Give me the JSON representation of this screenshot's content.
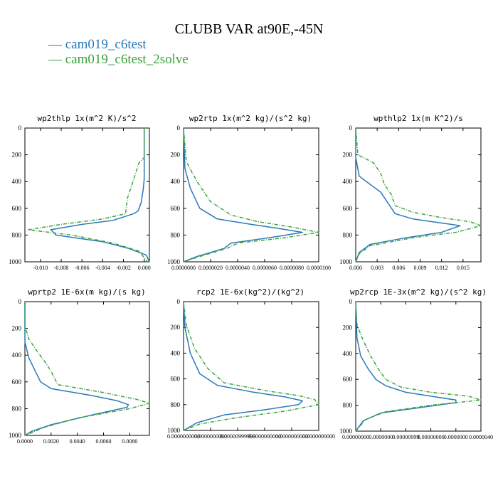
{
  "title": "CLUBB VAR at90E,-45N",
  "legend": [
    {
      "label": "— cam019_c6test",
      "color": "#2a7ab8"
    },
    {
      "label": "— cam019_c6test_2solve",
      "color": "#3aa33a"
    }
  ],
  "chart_data": [
    {
      "type": "line",
      "title": "wp2thlp   1x(m^2 K)/s^2",
      "xlim": [
        -0.0115,
        0.0005
      ],
      "ylim": [
        0,
        1000
      ],
      "y_inverted": true,
      "yticks": [
        0,
        200,
        400,
        600,
        800,
        1000
      ],
      "xticks": [
        -0.01,
        -0.008,
        -0.006,
        -0.004,
        -0.002,
        0.0
      ],
      "xtick_labels": [
        "-0.010",
        "-0.008",
        "-0.006",
        "-0.004",
        "-0.002",
        "0.000"
      ],
      "series": [
        {
          "name": "cam019_c6test",
          "color": "#2a7ab8",
          "dashed": false,
          "x": [
            0,
            0,
            -0.0001,
            -0.0003,
            -0.0006,
            -0.001,
            -0.003,
            -0.006,
            -0.009,
            -0.0085,
            -0.004,
            -0.0015,
            0.0002,
            0.0005
          ],
          "y": [
            0,
            380,
            460,
            560,
            620,
            640,
            690,
            720,
            760,
            800,
            850,
            900,
            950,
            1000
          ]
        },
        {
          "name": "cam019_c6test_2solve",
          "color": "#3aa33a",
          "dashed": true,
          "x": [
            0,
            0,
            -0.0005,
            -0.0013,
            -0.0016,
            -0.0017,
            -0.0018,
            -0.004,
            -0.008,
            -0.0112,
            -0.007,
            -0.003,
            -0.0005,
            0.0003
          ],
          "y": [
            0,
            220,
            260,
            450,
            520,
            580,
            640,
            680,
            720,
            760,
            800,
            860,
            920,
            1000
          ]
        }
      ]
    },
    {
      "type": "line",
      "title": "wp2rtp   1x(m^2 kg)/(s^2 kg)",
      "xlim": [
        0,
        1e-05
      ],
      "ylim": [
        0,
        1000
      ],
      "y_inverted": true,
      "yticks": [
        0,
        200,
        400,
        600,
        800,
        1000
      ],
      "xticks": [
        0,
        2e-06,
        4e-06,
        6e-06,
        8e-06,
        1e-05
      ],
      "xtick_labels": [
        "0.0000000",
        "0.0000020",
        "0.0000040",
        "0.0000060",
        "0.0000080",
        "0.0000100"
      ],
      "series": [
        {
          "name": "cam019_c6test",
          "color": "#2a7ab8",
          "dashed": false,
          "x": [
            0,
            1e-07,
            5e-07,
            1.2e-06,
            2.5e-06,
            5e-06,
            7e-06,
            8.8e-06,
            7e-06,
            3.5e-06,
            3e-06,
            1e-06,
            0
          ],
          "y": [
            0,
            300,
            450,
            600,
            680,
            720,
            750,
            780,
            810,
            860,
            900,
            960,
            1000
          ]
        },
        {
          "name": "cam019_c6test_2solve",
          "color": "#3aa33a",
          "dashed": true,
          "x": [
            0,
            2e-07,
            1e-06,
            2e-06,
            3.5e-06,
            5.5e-06,
            8e-06,
            1e-05,
            7.5e-06,
            4e-06,
            3.2e-06,
            1.2e-06,
            0
          ],
          "y": [
            0,
            250,
            400,
            550,
            650,
            700,
            740,
            780,
            820,
            860,
            900,
            960,
            1000
          ]
        }
      ]
    },
    {
      "type": "line",
      "title": "wpthlp2   1x(m K^2)/s",
      "xlim": [
        0,
        0.0175
      ],
      "ylim": [
        0,
        1000
      ],
      "y_inverted": true,
      "yticks": [
        0,
        200,
        400,
        600,
        800,
        1000
      ],
      "xticks": [
        0,
        0.003,
        0.006,
        0.009,
        0.012,
        0.015
      ],
      "xtick_labels": [
        "0.000",
        "0.003",
        "0.006",
        "0.009",
        "0.012",
        "0.015"
      ],
      "series": [
        {
          "name": "cam019_c6test",
          "color": "#2a7ab8",
          "dashed": false,
          "x": [
            0,
            0,
            0.0005,
            0.002,
            0.0035,
            0.0045,
            0.0055,
            0.008,
            0.012,
            0.0146,
            0.012,
            0.007,
            0.002,
            0.0005,
            0
          ],
          "y": [
            0,
            220,
            360,
            420,
            480,
            560,
            640,
            680,
            710,
            730,
            780,
            820,
            870,
            930,
            1000
          ]
        },
        {
          "name": "cam019_c6test_2solve",
          "color": "#3aa33a",
          "dashed": true,
          "x": [
            0,
            0.0003,
            0.0025,
            0.0035,
            0.004,
            0.005,
            0.0055,
            0.008,
            0.012,
            0.016,
            0.0175,
            0.014,
            0.008,
            0.002,
            0.0005,
            0
          ],
          "y": [
            0,
            200,
            260,
            340,
            420,
            500,
            580,
            630,
            670,
            700,
            730,
            780,
            820,
            880,
            940,
            1000
          ]
        }
      ]
    },
    {
      "type": "line",
      "title": "wprtp2   1E-6x(m kg)/(s kg)",
      "xlim": [
        0,
        0.0095
      ],
      "ylim": [
        0,
        1000
      ],
      "y_inverted": true,
      "yticks": [
        0,
        200,
        400,
        600,
        800,
        1000
      ],
      "xticks": [
        0,
        0.002,
        0.004,
        0.006,
        0.008
      ],
      "xtick_labels": [
        "0.0000",
        "0.0020",
        "0.0040",
        "0.0060",
        "0.0080"
      ],
      "series": [
        {
          "name": "cam019_c6test",
          "color": "#2a7ab8",
          "dashed": false,
          "x": [
            0,
            0,
            0.0003,
            0.0008,
            0.0012,
            0.002,
            0.005,
            0.007,
            0.0079,
            0.0078,
            0.005,
            0.002,
            0.0005,
            0
          ],
          "y": [
            0,
            300,
            420,
            520,
            600,
            650,
            700,
            740,
            770,
            790,
            850,
            920,
            970,
            1000
          ]
        },
        {
          "name": "cam019_c6test_2solve",
          "color": "#3aa33a",
          "dashed": true,
          "x": [
            0,
            0,
            0.0003,
            0.001,
            0.0016,
            0.002,
            0.0025,
            0.006,
            0.0085,
            0.0095,
            0.008,
            0.004,
            0.0015,
            0
          ],
          "y": [
            0,
            180,
            280,
            380,
            460,
            520,
            620,
            680,
            730,
            760,
            800,
            870,
            940,
            1000
          ]
        }
      ]
    },
    {
      "type": "line",
      "title": "rcp2   1E-6x(kg^2)/(kg^2)",
      "xlim": [
        0,
        1
      ],
      "ylim": [
        0,
        1000
      ],
      "y_inverted": true,
      "yticks": [
        0,
        200,
        400,
        600,
        800,
        1000
      ],
      "xticks": [
        0,
        0.2,
        0.4,
        0.6,
        0.8,
        1.0
      ],
      "xtick_labels": [
        "0.0000000000",
        "0.0000000000",
        "0.00000999999",
        "0.0000000000",
        "0.0000000000",
        "0.0000000000"
      ],
      "series": [
        {
          "name": "cam019_c6test",
          "color": "#2a7ab8",
          "dashed": false,
          "x": [
            0,
            0.01,
            0.05,
            0.12,
            0.25,
            0.5,
            0.75,
            0.88,
            0.85,
            0.6,
            0.3,
            0.1,
            0
          ],
          "y": [
            0,
            200,
            400,
            560,
            650,
            700,
            740,
            770,
            800,
            840,
            880,
            940,
            1000
          ]
        },
        {
          "name": "cam019_c6test_2solve",
          "color": "#3aa33a",
          "dashed": true,
          "x": [
            0,
            0.02,
            0.08,
            0.18,
            0.3,
            0.6,
            0.85,
            0.97,
            1.0,
            0.75,
            0.4,
            0.12,
            0
          ],
          "y": [
            0,
            180,
            360,
            520,
            630,
            690,
            730,
            760,
            800,
            850,
            900,
            950,
            1000
          ]
        }
      ]
    },
    {
      "type": "line",
      "title": "wp2rcp   1E-3x(m^2 kg)/(s^2 kg)",
      "xlim": [
        0,
        0.05
      ],
      "ylim": [
        0,
        1000
      ],
      "y_inverted": true,
      "yticks": [
        0,
        200,
        400,
        600,
        800,
        1000
      ],
      "xticks": [
        0,
        0.01,
        0.02,
        0.03,
        0.04,
        0.05
      ],
      "xtick_labels": [
        "0.00000000",
        "0.0000000",
        "0.00000999",
        "0.00000000",
        "0.0000000",
        "0.0000040"
      ],
      "series": [
        {
          "name": "cam019_c6test",
          "color": "#2a7ab8",
          "dashed": false,
          "x": [
            0,
            0.0005,
            0.002,
            0.005,
            0.008,
            0.012,
            0.02,
            0.03,
            0.04,
            0.04,
            0.025,
            0.01,
            0.003,
            0
          ],
          "y": [
            0,
            280,
            420,
            520,
            600,
            650,
            700,
            730,
            760,
            780,
            820,
            860,
            920,
            1000
          ]
        },
        {
          "name": "cam019_c6test_2solve",
          "color": "#3aa33a",
          "dashed": true,
          "x": [
            0,
            0.0005,
            0.003,
            0.006,
            0.009,
            0.012,
            0.018,
            0.03,
            0.045,
            0.05,
            0.03,
            0.012,
            0.004,
            0
          ],
          "y": [
            0,
            180,
            300,
            420,
            520,
            600,
            660,
            700,
            730,
            760,
            800,
            850,
            910,
            1000
          ]
        }
      ]
    }
  ]
}
